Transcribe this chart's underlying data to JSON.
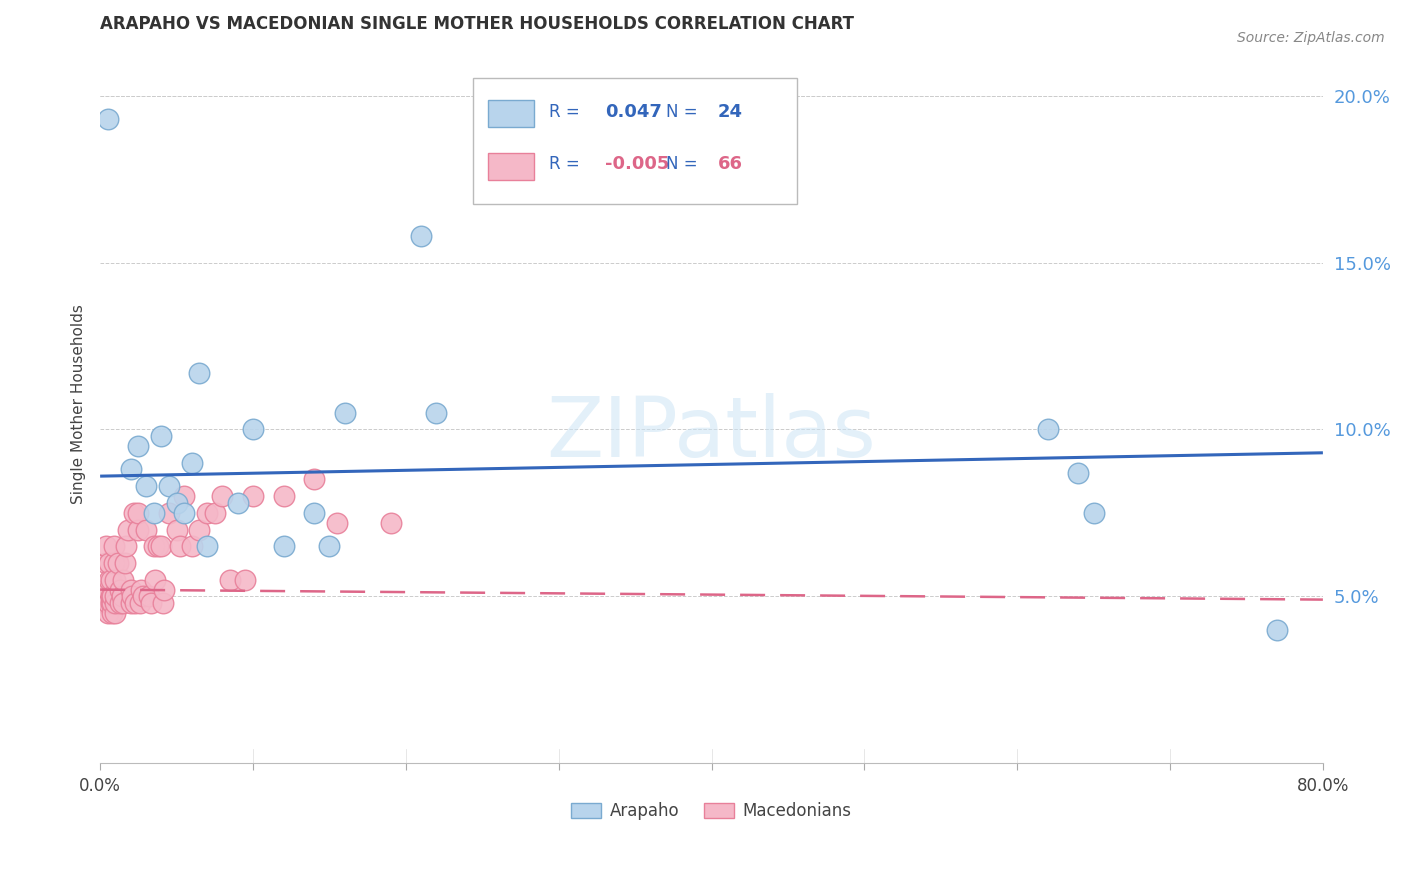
{
  "title": "ARAPAHO VS MACEDONIAN SINGLE MOTHER HOUSEHOLDS CORRELATION CHART",
  "source": "Source: ZipAtlas.com",
  "ylabel": "Single Mother Households",
  "xlim": [
    0.0,
    0.8
  ],
  "ylim": [
    0.0,
    0.215
  ],
  "yticks": [
    0.05,
    0.1,
    0.15,
    0.2
  ],
  "ytick_labels": [
    "5.0%",
    "10.0%",
    "15.0%",
    "20.0%"
  ],
  "xticks": [
    0.0,
    0.1,
    0.2,
    0.3,
    0.4,
    0.5,
    0.6,
    0.7,
    0.8
  ],
  "arapaho_color": "#b8d4ec",
  "macedonian_color": "#f5b8c8",
  "arapaho_edge": "#7aaad0",
  "macedonian_edge": "#e8809a",
  "trendline_blue": "#3366bb",
  "trendline_pink": "#dd6688",
  "legend_R_arapaho": "0.047",
  "legend_N_arapaho": "24",
  "legend_R_macedonian": "-0.005",
  "legend_N_macedonian": "66",
  "watermark_text": "ZIPatlas",
  "arapaho_trendline_x": [
    0.0,
    0.8
  ],
  "arapaho_trendline_y": [
    0.086,
    0.093
  ],
  "macedonian_trendline_x": [
    0.0,
    0.8
  ],
  "macedonian_trendline_y": [
    0.052,
    0.049
  ],
  "arapaho_x": [
    0.005,
    0.02,
    0.025,
    0.03,
    0.035,
    0.04,
    0.045,
    0.05,
    0.055,
    0.06,
    0.065,
    0.07,
    0.09,
    0.1,
    0.12,
    0.14,
    0.15,
    0.16,
    0.21,
    0.22,
    0.62,
    0.64,
    0.65,
    0.77
  ],
  "arapaho_y": [
    0.193,
    0.088,
    0.095,
    0.083,
    0.075,
    0.098,
    0.083,
    0.078,
    0.075,
    0.09,
    0.117,
    0.065,
    0.078,
    0.1,
    0.065,
    0.075,
    0.065,
    0.105,
    0.158,
    0.105,
    0.1,
    0.087,
    0.075,
    0.04
  ],
  "macedonian_x": [
    0.002,
    0.003,
    0.003,
    0.004,
    0.004,
    0.005,
    0.005,
    0.005,
    0.006,
    0.006,
    0.007,
    0.007,
    0.007,
    0.008,
    0.008,
    0.008,
    0.009,
    0.009,
    0.01,
    0.01,
    0.01,
    0.01,
    0.012,
    0.013,
    0.013,
    0.014,
    0.015,
    0.015,
    0.016,
    0.017,
    0.018,
    0.02,
    0.02,
    0.021,
    0.022,
    0.023,
    0.025,
    0.025,
    0.026,
    0.027,
    0.028,
    0.03,
    0.032,
    0.033,
    0.035,
    0.036,
    0.038,
    0.04,
    0.041,
    0.042,
    0.045,
    0.05,
    0.052,
    0.055,
    0.06,
    0.065,
    0.07,
    0.075,
    0.08,
    0.085,
    0.095,
    0.1,
    0.12,
    0.14,
    0.155,
    0.19
  ],
  "macedonian_y": [
    0.05,
    0.048,
    0.052,
    0.06,
    0.065,
    0.045,
    0.048,
    0.052,
    0.055,
    0.06,
    0.048,
    0.05,
    0.055,
    0.045,
    0.048,
    0.05,
    0.06,
    0.065,
    0.045,
    0.048,
    0.05,
    0.055,
    0.06,
    0.048,
    0.052,
    0.05,
    0.048,
    0.055,
    0.06,
    0.065,
    0.07,
    0.048,
    0.052,
    0.05,
    0.075,
    0.048,
    0.07,
    0.075,
    0.048,
    0.052,
    0.05,
    0.07,
    0.05,
    0.048,
    0.065,
    0.055,
    0.065,
    0.065,
    0.048,
    0.052,
    0.075,
    0.07,
    0.065,
    0.08,
    0.065,
    0.07,
    0.075,
    0.075,
    0.08,
    0.055,
    0.055,
    0.08,
    0.08,
    0.085,
    0.072,
    0.072
  ]
}
